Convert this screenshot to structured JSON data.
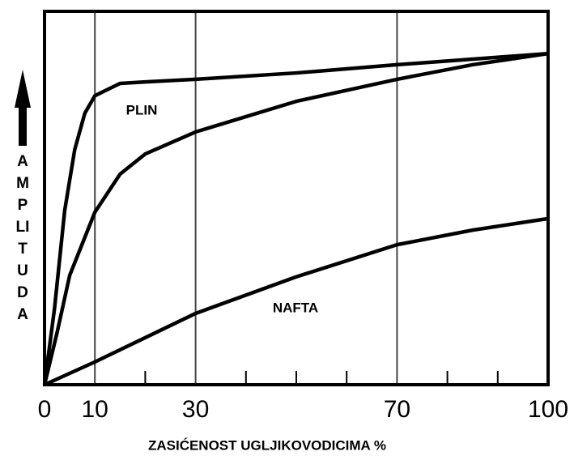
{
  "chart_data": {
    "type": "line",
    "xlabel": "ZASIĆENOST UGLJIKOVODICIMA %",
    "ylabel": "AMPLITUDA",
    "annotations": [
      "PLIN",
      "NAFTA"
    ],
    "xlim": [
      0,
      100
    ],
    "xticks": [
      0,
      10,
      30,
      70,
      100
    ],
    "xminorticks": [
      20,
      40,
      50,
      60,
      80,
      90
    ],
    "ylim": [
      0,
      100
    ],
    "grid": true,
    "series": [
      {
        "color": "#000000",
        "x": [
          0,
          2,
          4,
          6,
          8,
          10,
          15,
          20,
          30,
          50,
          70,
          85,
          100
        ],
        "values": [
          0,
          20.6,
          46.6,
          63,
          72.7,
          77.4,
          80.7,
          81.1,
          81.8,
          83.5,
          85.7,
          87.2,
          88.7
        ]
      },
      {
        "color": "#000000",
        "x": [
          0,
          2.5,
          5,
          10,
          15,
          20,
          30,
          50,
          70,
          85,
          100
        ],
        "values": [
          0,
          14,
          29.3,
          46.2,
          56.4,
          61.8,
          67.7,
          75.9,
          81.8,
          85.7,
          88.7
        ]
      },
      {
        "color": "#000000",
        "x": [
          0,
          10,
          30,
          50,
          70,
          85,
          100
        ],
        "values": [
          0,
          6.1,
          19.1,
          28.9,
          37.5,
          41.4,
          44.5
        ]
      }
    ]
  }
}
